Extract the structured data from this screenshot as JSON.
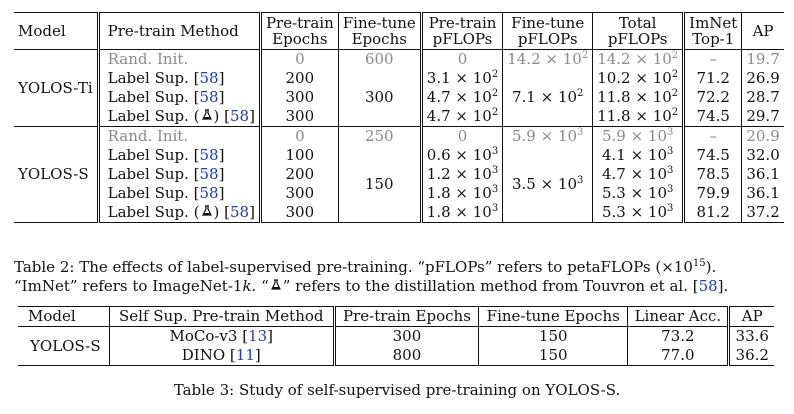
{
  "table2": {
    "headers": {
      "model": "Model",
      "method": "Pre-train Method",
      "pt_epochs": [
        "Pre-train",
        "Epochs"
      ],
      "ft_epochs": [
        "Fine-tune",
        "Epochs"
      ],
      "pt_pflops": [
        "Pre-train",
        "pFLOPs"
      ],
      "ft_pflops": [
        "Fine-tune",
        "pFLOPs"
      ],
      "total_pflops": [
        "Total",
        "pFLOPs"
      ],
      "imnet": [
        "ImNet",
        "Top-1"
      ],
      "ap": "AP"
    },
    "groups": [
      {
        "model": "YOLOS-Ti",
        "ft_epochs": "300",
        "ft_pflops_base": "7.1 × 10",
        "ft_pflops_exp": "2",
        "rows": [
          {
            "method": "Rand. Init.",
            "ref": "",
            "distill": false,
            "grey": true,
            "pt_epochs": "0",
            "ft_epochs": "600",
            "pt_pflops": "0",
            "pt_exp": "",
            "ft_pflops": "14.2 × 10",
            "ft_exp": "2",
            "total": "14.2 × 10",
            "total_exp": "2",
            "imnet": "–",
            "ap": "19.7"
          },
          {
            "method": "Label Sup.",
            "ref": "58",
            "distill": false,
            "grey": false,
            "pt_epochs": "200",
            "pt_pflops": "3.1 × 10",
            "pt_exp": "2",
            "total": "10.2 × 10",
            "total_exp": "2",
            "imnet": "71.2",
            "ap": "26.9"
          },
          {
            "method": "Label Sup.",
            "ref": "58",
            "distill": false,
            "grey": false,
            "pt_epochs": "300",
            "pt_pflops": "4.7 × 10",
            "pt_exp": "2",
            "total": "11.8 × 10",
            "total_exp": "2",
            "imnet": "72.2",
            "ap": "28.7"
          },
          {
            "method": "Label Sup. (",
            "ref": "58",
            "distill": true,
            "grey": false,
            "pt_epochs": "300",
            "pt_pflops": "4.7 × 10",
            "pt_exp": "2",
            "total": "11.8 × 10",
            "total_exp": "2",
            "imnet": "74.5",
            "ap": "29.7"
          }
        ]
      },
      {
        "model": "YOLOS-S",
        "ft_epochs": "150",
        "ft_pflops_base": "3.5 × 10",
        "ft_pflops_exp": "3",
        "rows": [
          {
            "method": "Rand. Init.",
            "ref": "",
            "distill": false,
            "grey": true,
            "pt_epochs": "0",
            "ft_epochs": "250",
            "pt_pflops": "0",
            "pt_exp": "",
            "ft_pflops": "5.9 × 10",
            "ft_exp": "3",
            "total": "5.9 × 10",
            "total_exp": "3",
            "imnet": "–",
            "ap": "20.9"
          },
          {
            "method": "Label Sup.",
            "ref": "58",
            "distill": false,
            "grey": false,
            "pt_epochs": "100",
            "pt_pflops": "0.6 × 10",
            "pt_exp": "3",
            "total": "4.1 × 10",
            "total_exp": "3",
            "imnet": "74.5",
            "ap": "32.0"
          },
          {
            "method": "Label Sup.",
            "ref": "58",
            "distill": false,
            "grey": false,
            "pt_epochs": "200",
            "pt_pflops": "1.2 × 10",
            "pt_exp": "3",
            "total": "4.7 × 10",
            "total_exp": "3",
            "imnet": "78.5",
            "ap": "36.1"
          },
          {
            "method": "Label Sup.",
            "ref": "58",
            "distill": false,
            "grey": false,
            "pt_epochs": "300",
            "pt_pflops": "1.8 × 10",
            "pt_exp": "3",
            "total": "5.3 × 10",
            "total_exp": "3",
            "imnet": "79.9",
            "ap": "36.1"
          },
          {
            "method": "Label Sup. (",
            "ref": "58",
            "distill": true,
            "grey": false,
            "pt_epochs": "300",
            "pt_pflops": "1.8 × 10",
            "pt_exp": "3",
            "total": "5.3 × 10",
            "total_exp": "3",
            "imnet": "81.2",
            "ap": "37.2"
          }
        ]
      }
    ],
    "caption": {
      "p1": "Table 2: The effects of label-supervised pre-training. “pFLOPs” refers to petaFLOPs (×10",
      "exp": "15",
      "p2": "). “ImNet” refers to ImageNet-1",
      "k": "k",
      "p3": ". “",
      "p4": "” refers to the distillation method from Touvron et al. [",
      "ref": "58",
      "p5": "]."
    }
  },
  "table3": {
    "headers": {
      "model": "Model",
      "method": "Self Sup. Pre-train Method",
      "pt_epochs": "Pre-train Epochs",
      "ft_epochs": "Fine-tune Epochs",
      "linear": "Linear Acc.",
      "ap": "AP"
    },
    "model": "YOLOS-S",
    "rows": [
      {
        "method": "MoCo-v3",
        "ref": "13",
        "pt_epochs": "300",
        "ft_epochs": "150",
        "linear": "73.2",
        "ap": "33.6"
      },
      {
        "method": "DINO",
        "ref": "11",
        "pt_epochs": "800",
        "ft_epochs": "150",
        "linear": "77.0",
        "ap": "36.2"
      }
    ],
    "caption": "Table 3: Study of self-supervised pre-training on YOLOS-S."
  },
  "icons": {
    "distill": "alembic-icon"
  }
}
